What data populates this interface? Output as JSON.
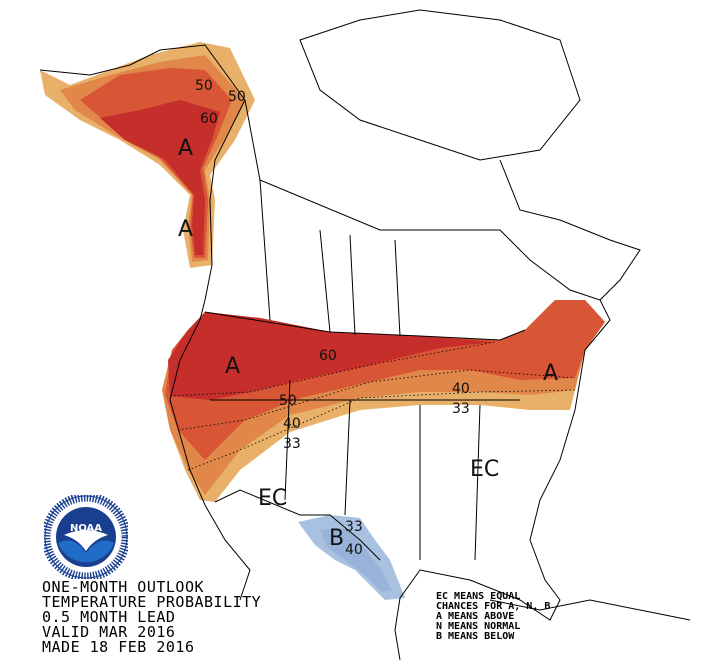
{
  "caption": {
    "lines": [
      "ONE-MONTH OUTLOOK",
      "TEMPERATURE PROBABILITY",
      "0.5 MONTH LEAD",
      "VALID MAR 2016",
      "MADE 18 FEB 2016"
    ]
  },
  "legend": {
    "lines": [
      "EC MEANS EQUAL",
      "CHANCES FOR A, N, B",
      "A MEANS ABOVE",
      "N MEANS NORMAL",
      "B MEANS BELOW"
    ]
  },
  "logo": {
    "text": "NOAA",
    "ring_text": "NATIONAL OCEANIC AND ATMOSPHERIC ADMINISTRATION · U.S. DEPARTMENT OF COMMERCE"
  },
  "map": {
    "category_labels": [
      "A",
      "A",
      "A",
      "A",
      "EC",
      "EC",
      "B"
    ],
    "contour_labels": [
      "50",
      "50",
      "60",
      "60",
      "50",
      "40",
      "33",
      "40",
      "33",
      "33",
      "40"
    ],
    "colors": {
      "above_33": "#e8b068",
      "above_40": "#e2874a",
      "above_50": "#d85535",
      "above_60": "#c52e2a",
      "below_33": "#a9c1e0",
      "below_40": "#8eaad4"
    }
  }
}
